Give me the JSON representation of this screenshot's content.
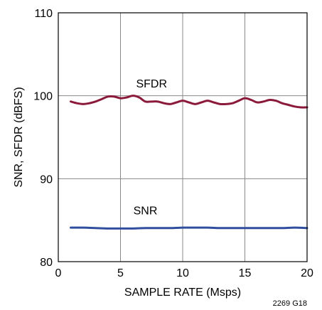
{
  "chart_data": {
    "type": "line",
    "xlabel": "SAMPLE RATE (Msps)",
    "ylabel": "SNR, SFDR (dBFS)",
    "xlim": [
      0,
      20
    ],
    "ylim": [
      80,
      110
    ],
    "x_ticks": [
      0,
      5,
      10,
      15,
      20
    ],
    "y_ticks": [
      80,
      90,
      100,
      110
    ],
    "x_tick_labels": [
      "0",
      "5",
      "10",
      "15",
      "20"
    ],
    "y_tick_labels": [
      "80",
      "90",
      "100",
      "110"
    ],
    "grid": true,
    "legend": "none",
    "series": [
      {
        "name": "SFDR",
        "color": "#8b1a3a",
        "x": [
          1,
          1.5,
          2,
          2.5,
          3,
          3.5,
          4,
          4.5,
          5,
          5.5,
          6,
          6.5,
          7,
          7.5,
          8,
          8.5,
          9,
          9.5,
          10,
          10.5,
          11,
          11.5,
          12,
          12.5,
          13,
          13.5,
          14,
          14.5,
          15,
          15.5,
          16,
          16.5,
          17,
          17.5,
          18,
          18.5,
          19,
          19.5,
          20
        ],
        "values": [
          99.3,
          99.1,
          99.0,
          99.1,
          99.3,
          99.6,
          99.9,
          99.9,
          99.7,
          99.8,
          100.0,
          99.8,
          99.3,
          99.3,
          99.3,
          99.1,
          99.0,
          99.2,
          99.4,
          99.2,
          99.0,
          99.2,
          99.4,
          99.2,
          99.0,
          99.0,
          99.1,
          99.4,
          99.7,
          99.5,
          99.2,
          99.3,
          99.5,
          99.4,
          99.1,
          98.9,
          98.7,
          98.6,
          98.6
        ]
      },
      {
        "name": "SNR",
        "color": "#2f4f9e",
        "x": [
          1,
          2,
          3,
          4,
          5,
          6,
          7,
          8,
          9,
          10,
          11,
          12,
          13,
          14,
          15,
          16,
          17,
          18,
          19,
          20
        ],
        "values": [
          84.1,
          84.1,
          84.05,
          84.0,
          84.0,
          84.0,
          84.05,
          84.05,
          84.05,
          84.1,
          84.1,
          84.1,
          84.05,
          84.05,
          84.05,
          84.05,
          84.05,
          84.05,
          84.1,
          84.05
        ]
      }
    ],
    "annotations": [
      {
        "text": "SFDR",
        "x": 7.5,
        "y": 101.0
      },
      {
        "text": "SNR",
        "x": 7.0,
        "y": 85.7
      }
    ],
    "figure_code": "2269 G18"
  }
}
